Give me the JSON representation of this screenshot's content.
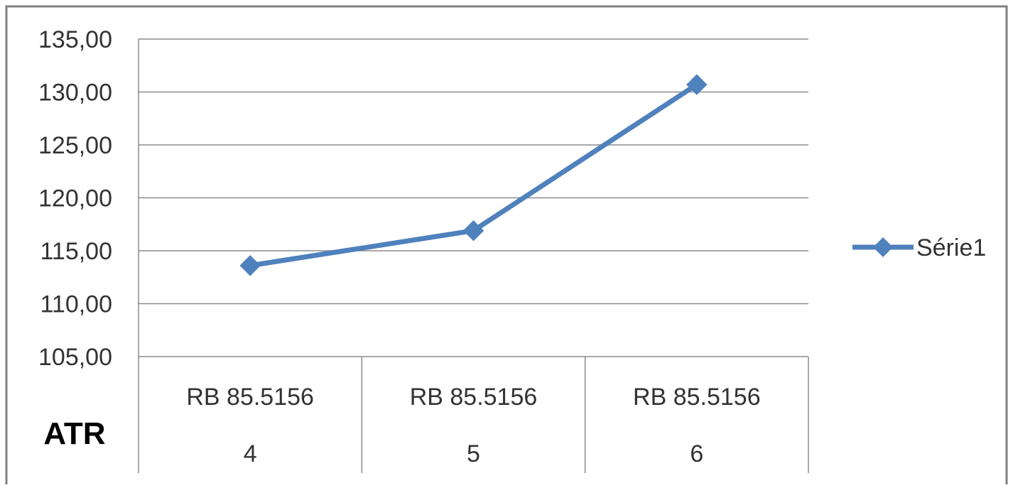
{
  "chart_data": {
    "type": "line",
    "categories": [
      "RB 85.5156 4",
      "RB 85.5156 5",
      "RB 85.5156 6"
    ],
    "category_lines": [
      [
        "RB 85.5156",
        "4"
      ],
      [
        "RB 85.5156",
        "5"
      ],
      [
        "RB 85.5156",
        "6"
      ]
    ],
    "series": [
      {
        "name": "Série1",
        "values": [
          113.6,
          116.9,
          130.7
        ],
        "color": "#4F81BD",
        "marker": "diamond"
      }
    ],
    "ylim": [
      105,
      135
    ],
    "yticks": [
      105,
      110,
      115,
      120,
      125,
      130,
      135
    ],
    "ytick_labels": [
      "105,00",
      "110,00",
      "115,00",
      "120,00",
      "125,00",
      "130,00",
      "135,00"
    ],
    "ylabel": "ATR",
    "xlabel": "",
    "title": "",
    "grid": true,
    "legend": "right"
  },
  "colors": {
    "gridline": "#8C8C8C",
    "frame": "#7F7F7F",
    "series": "#4F81BD"
  }
}
